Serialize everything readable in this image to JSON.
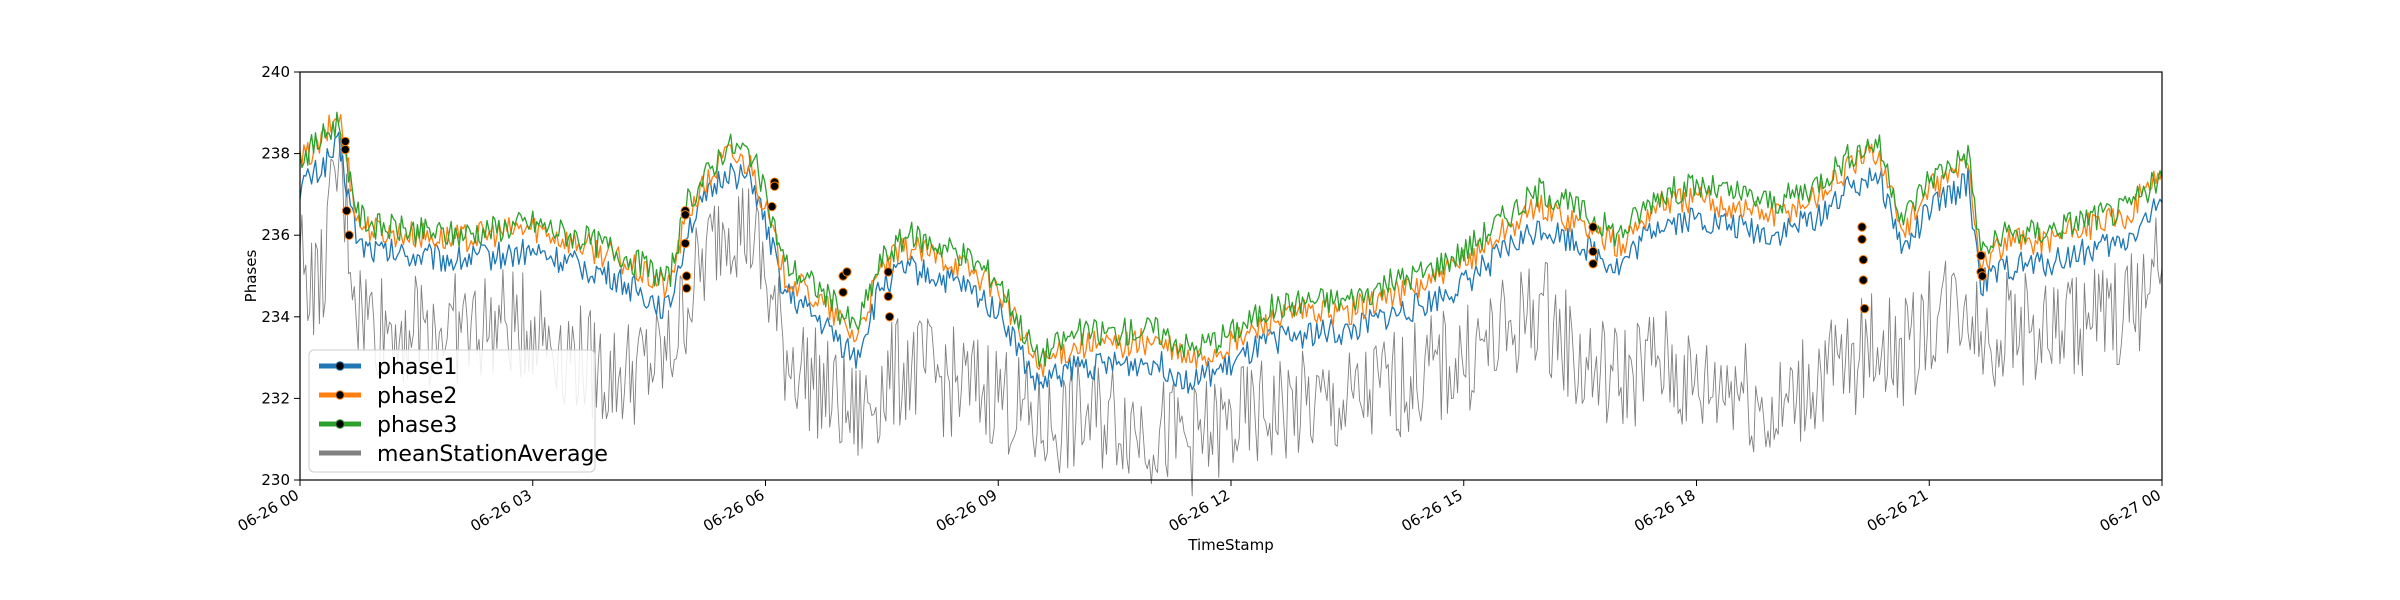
{
  "chart_data": {
    "type": "line",
    "title": "",
    "xlabel": "TimeStamp",
    "ylabel": "Phases",
    "xlim": [
      "2020-06-26 00:00",
      "2020-06-27 00:00"
    ],
    "ylim": [
      230,
      240
    ],
    "xticks": [
      {
        "t": "2020-06-26 00:00",
        "label": "06-26 00"
      },
      {
        "t": "2020-06-26 03:00",
        "label": "06-26 03"
      },
      {
        "t": "2020-06-26 06:00",
        "label": "06-26 06"
      },
      {
        "t": "2020-06-26 09:00",
        "label": "06-26 09"
      },
      {
        "t": "2020-06-26 12:00",
        "label": "06-26 12"
      },
      {
        "t": "2020-06-26 15:00",
        "label": "06-26 15"
      },
      {
        "t": "2020-06-26 18:00",
        "label": "06-26 18"
      },
      {
        "t": "2020-06-26 21:00",
        "label": "06-26 21"
      },
      {
        "t": "2020-06-27 00:00",
        "label": "06-27 00"
      }
    ],
    "yticks": [
      230,
      232,
      234,
      236,
      238,
      240
    ],
    "grid": false,
    "legend_position": "lower-left",
    "series": [
      {
        "name": "phase1",
        "color": "#1f77b4",
        "x": [
          "2020-06-26 00:00",
          "2020-06-26 00:15",
          "2020-06-26 00:30",
          "2020-06-26 00:45",
          "2020-06-26 01:00",
          "2020-06-26 02:00",
          "2020-06-26 03:00",
          "2020-06-26 04:00",
          "2020-06-26 04:45",
          "2020-06-26 05:00",
          "2020-06-26 05:30",
          "2020-06-26 05:50",
          "2020-06-26 06:15",
          "2020-06-26 06:45",
          "2020-06-26 07:10",
          "2020-06-26 07:30",
          "2020-06-26 07:50",
          "2020-06-26 08:30",
          "2020-06-26 09:00",
          "2020-06-26 09:30",
          "2020-06-26 10:00",
          "2020-06-26 10:30",
          "2020-06-26 11:00",
          "2020-06-26 11:30",
          "2020-06-26 12:00",
          "2020-06-26 12:30",
          "2020-06-26 13:00",
          "2020-06-26 13:30",
          "2020-06-26 14:00",
          "2020-06-26 14:30",
          "2020-06-26 15:00",
          "2020-06-26 15:30",
          "2020-06-26 16:00",
          "2020-06-26 16:30",
          "2020-06-26 17:00",
          "2020-06-26 17:30",
          "2020-06-26 18:00",
          "2020-06-26 18:30",
          "2020-06-26 19:00",
          "2020-06-26 19:30",
          "2020-06-26 20:00",
          "2020-06-26 20:20",
          "2020-06-26 20:40",
          "2020-06-26 21:00",
          "2020-06-26 21:30",
          "2020-06-26 21:40",
          "2020-06-26 22:00",
          "2020-06-26 22:30",
          "2020-06-26 23:00",
          "2020-06-26 23:30",
          "2020-06-27 00:00"
        ],
        "values": [
          237.2,
          237.6,
          238.2,
          235.8,
          235.6,
          235.4,
          235.6,
          235.0,
          234.2,
          236.2,
          237.6,
          237.3,
          234.6,
          233.8,
          233.0,
          234.8,
          235.2,
          234.8,
          234.2,
          232.3,
          232.8,
          232.8,
          232.9,
          232.4,
          232.8,
          233.4,
          233.6,
          233.6,
          234.0,
          234.3,
          234.8,
          235.6,
          236.2,
          235.8,
          235.2,
          236.3,
          236.4,
          236.2,
          236.0,
          236.4,
          237.2,
          237.6,
          235.6,
          236.6,
          237.3,
          234.8,
          235.2,
          235.3,
          235.6,
          235.8,
          236.8
        ]
      },
      {
        "name": "phase2",
        "color": "#ff7f0e",
        "x": [
          "2020-06-26 00:00",
          "2020-06-26 00:15",
          "2020-06-26 00:30",
          "2020-06-26 00:45",
          "2020-06-26 01:00",
          "2020-06-26 02:00",
          "2020-06-26 03:00",
          "2020-06-26 04:00",
          "2020-06-26 04:45",
          "2020-06-26 05:00",
          "2020-06-26 05:30",
          "2020-06-26 05:50",
          "2020-06-26 06:15",
          "2020-06-26 06:45",
          "2020-06-26 07:10",
          "2020-06-26 07:30",
          "2020-06-26 07:50",
          "2020-06-26 08:30",
          "2020-06-26 09:00",
          "2020-06-26 09:30",
          "2020-06-26 10:00",
          "2020-06-26 10:30",
          "2020-06-26 11:00",
          "2020-06-26 11:30",
          "2020-06-26 12:00",
          "2020-06-26 12:30",
          "2020-06-26 13:00",
          "2020-06-26 13:30",
          "2020-06-26 14:00",
          "2020-06-26 14:30",
          "2020-06-26 15:00",
          "2020-06-26 15:30",
          "2020-06-26 16:00",
          "2020-06-26 16:30",
          "2020-06-26 17:00",
          "2020-06-26 17:30",
          "2020-06-26 18:00",
          "2020-06-26 18:30",
          "2020-06-26 19:00",
          "2020-06-26 19:30",
          "2020-06-26 20:00",
          "2020-06-26 20:20",
          "2020-06-26 20:40",
          "2020-06-26 21:00",
          "2020-06-26 21:30",
          "2020-06-26 21:40",
          "2020-06-26 22:00",
          "2020-06-26 22:30",
          "2020-06-26 23:00",
          "2020-06-26 23:30",
          "2020-06-27 00:00"
        ],
        "values": [
          237.8,
          238.2,
          239.0,
          236.3,
          236.1,
          235.9,
          236.2,
          235.5,
          234.7,
          236.6,
          238.0,
          237.7,
          235.0,
          234.3,
          233.5,
          235.2,
          235.7,
          235.3,
          234.7,
          232.8,
          233.3,
          233.3,
          233.4,
          232.9,
          233.3,
          233.9,
          234.1,
          234.1,
          234.5,
          234.8,
          235.3,
          236.1,
          236.7,
          236.3,
          235.7,
          236.8,
          236.9,
          236.7,
          236.5,
          236.9,
          237.7,
          238.1,
          236.1,
          237.1,
          237.8,
          235.3,
          235.8,
          235.9,
          236.2,
          236.4,
          237.6
        ]
      },
      {
        "name": "phase3",
        "color": "#2ca02c",
        "x": [
          "2020-06-26 00:00",
          "2020-06-26 00:15",
          "2020-06-26 00:30",
          "2020-06-26 00:45",
          "2020-06-26 01:00",
          "2020-06-26 02:00",
          "2020-06-26 03:00",
          "2020-06-26 04:00",
          "2020-06-26 04:45",
          "2020-06-26 05:00",
          "2020-06-26 05:30",
          "2020-06-26 05:50",
          "2020-06-26 06:15",
          "2020-06-26 06:45",
          "2020-06-26 07:10",
          "2020-06-26 07:30",
          "2020-06-26 07:50",
          "2020-06-26 08:30",
          "2020-06-26 09:00",
          "2020-06-26 09:30",
          "2020-06-26 10:00",
          "2020-06-26 10:30",
          "2020-06-26 11:00",
          "2020-06-26 11:30",
          "2020-06-26 12:00",
          "2020-06-26 12:30",
          "2020-06-26 13:00",
          "2020-06-26 13:30",
          "2020-06-26 14:00",
          "2020-06-26 14:30",
          "2020-06-26 15:00",
          "2020-06-26 15:30",
          "2020-06-26 16:00",
          "2020-06-26 16:30",
          "2020-06-26 17:00",
          "2020-06-26 17:30",
          "2020-06-26 18:00",
          "2020-06-26 18:30",
          "2020-06-26 19:00",
          "2020-06-26 19:30",
          "2020-06-26 20:00",
          "2020-06-26 20:20",
          "2020-06-26 20:40",
          "2020-06-26 21:00",
          "2020-06-26 21:30",
          "2020-06-26 21:40",
          "2020-06-26 22:00",
          "2020-06-26 22:30",
          "2020-06-26 23:00",
          "2020-06-26 23:30",
          "2020-06-27 00:00"
        ],
        "values": [
          237.9,
          238.3,
          238.8,
          236.5,
          236.2,
          236.0,
          236.3,
          235.7,
          234.9,
          236.8,
          238.2,
          238.0,
          235.3,
          234.6,
          233.7,
          235.4,
          236.0,
          235.6,
          234.9,
          233.0,
          233.6,
          233.6,
          233.7,
          233.2,
          233.6,
          234.2,
          234.4,
          234.4,
          234.8,
          235.1,
          235.6,
          236.4,
          237.1,
          236.6,
          236.0,
          237.0,
          237.2,
          237.0,
          236.8,
          237.2,
          238.0,
          238.3,
          236.4,
          237.4,
          238.0,
          235.6,
          236.0,
          236.1,
          236.4,
          236.6,
          237.4
        ]
      },
      {
        "name": "meanStationAverage",
        "color": "#808080",
        "x": [
          "2020-06-26 00:00",
          "2020-06-26 00:15",
          "2020-06-26 00:30",
          "2020-06-26 00:45",
          "2020-06-26 01:00",
          "2020-06-26 02:00",
          "2020-06-26 03:00",
          "2020-06-26 04:00",
          "2020-06-26 04:45",
          "2020-06-26 05:00",
          "2020-06-26 05:30",
          "2020-06-26 05:50",
          "2020-06-26 06:15",
          "2020-06-26 06:45",
          "2020-06-26 07:10",
          "2020-06-26 07:30",
          "2020-06-26 07:50",
          "2020-06-26 08:30",
          "2020-06-26 09:00",
          "2020-06-26 09:30",
          "2020-06-26 10:00",
          "2020-06-26 10:30",
          "2020-06-26 11:00",
          "2020-06-26 11:30",
          "2020-06-26 12:00",
          "2020-06-26 12:30",
          "2020-06-26 13:00",
          "2020-06-26 13:30",
          "2020-06-26 14:00",
          "2020-06-26 14:30",
          "2020-06-26 15:00",
          "2020-06-26 15:30",
          "2020-06-26 16:00",
          "2020-06-26 16:30",
          "2020-06-26 17:00",
          "2020-06-26 17:30",
          "2020-06-26 18:00",
          "2020-06-26 18:30",
          "2020-06-26 19:00",
          "2020-06-26 19:30",
          "2020-06-26 20:00",
          "2020-06-26 20:20",
          "2020-06-26 20:40",
          "2020-06-26 21:00",
          "2020-06-26 21:30",
          "2020-06-26 21:40",
          "2020-06-26 22:00",
          "2020-06-26 22:30",
          "2020-06-26 23:00",
          "2020-06-26 23:30",
          "2020-06-27 00:00"
        ],
        "values": [
          235.5,
          234.5,
          237.8,
          234.2,
          233.8,
          233.7,
          233.8,
          232.5,
          233.0,
          234.5,
          236.5,
          236.0,
          233.2,
          232.2,
          231.5,
          232.3,
          232.8,
          232.3,
          232.2,
          231.3,
          231.5,
          231.6,
          231.2,
          231.0,
          231.3,
          231.7,
          231.8,
          231.8,
          232.3,
          232.6,
          233.0,
          233.5,
          234.3,
          232.8,
          232.5,
          233.0,
          232.2,
          232.5,
          231.5,
          232.5,
          232.8,
          233.5,
          233.0,
          234.0,
          234.5,
          233.5,
          233.8,
          233.6,
          233.9,
          234.1,
          235.2
        ]
      }
    ],
    "markers": [
      {
        "x": "2020-06-26 00:35",
        "y": 238.1
      },
      {
        "x": "2020-06-26 00:35",
        "y": 238.3
      },
      {
        "x": "2020-06-26 00:36",
        "y": 236.6
      },
      {
        "x": "2020-06-26 00:38",
        "y": 236.0
      },
      {
        "x": "2020-06-26 04:58",
        "y": 236.6
      },
      {
        "x": "2020-06-26 04:58",
        "y": 236.5
      },
      {
        "x": "2020-06-26 04:58",
        "y": 235.8
      },
      {
        "x": "2020-06-26 04:59",
        "y": 235.0
      },
      {
        "x": "2020-06-26 04:59",
        "y": 234.7
      },
      {
        "x": "2020-06-26 06:07",
        "y": 237.3
      },
      {
        "x": "2020-06-26 06:07",
        "y": 237.2
      },
      {
        "x": "2020-06-26 06:05",
        "y": 236.7
      },
      {
        "x": "2020-06-26 07:00",
        "y": 235.0
      },
      {
        "x": "2020-06-26 07:00",
        "y": 234.6
      },
      {
        "x": "2020-06-26 07:03",
        "y": 235.1
      },
      {
        "x": "2020-06-26 07:35",
        "y": 235.1
      },
      {
        "x": "2020-06-26 07:35",
        "y": 234.5
      },
      {
        "x": "2020-06-26 07:36",
        "y": 234.0
      },
      {
        "x": "2020-06-26 16:40",
        "y": 236.2
      },
      {
        "x": "2020-06-26 16:40",
        "y": 235.6
      },
      {
        "x": "2020-06-26 16:40",
        "y": 235.3
      },
      {
        "x": "2020-06-26 20:08",
        "y": 236.2
      },
      {
        "x": "2020-06-26 20:08",
        "y": 235.9
      },
      {
        "x": "2020-06-26 20:09",
        "y": 235.4
      },
      {
        "x": "2020-06-26 20:09",
        "y": 234.9
      },
      {
        "x": "2020-06-26 20:10",
        "y": 234.2
      },
      {
        "x": "2020-06-26 21:40",
        "y": 235.5
      },
      {
        "x": "2020-06-26 21:40",
        "y": 235.1
      },
      {
        "x": "2020-06-26 21:41",
        "y": 235.0
      }
    ]
  }
}
